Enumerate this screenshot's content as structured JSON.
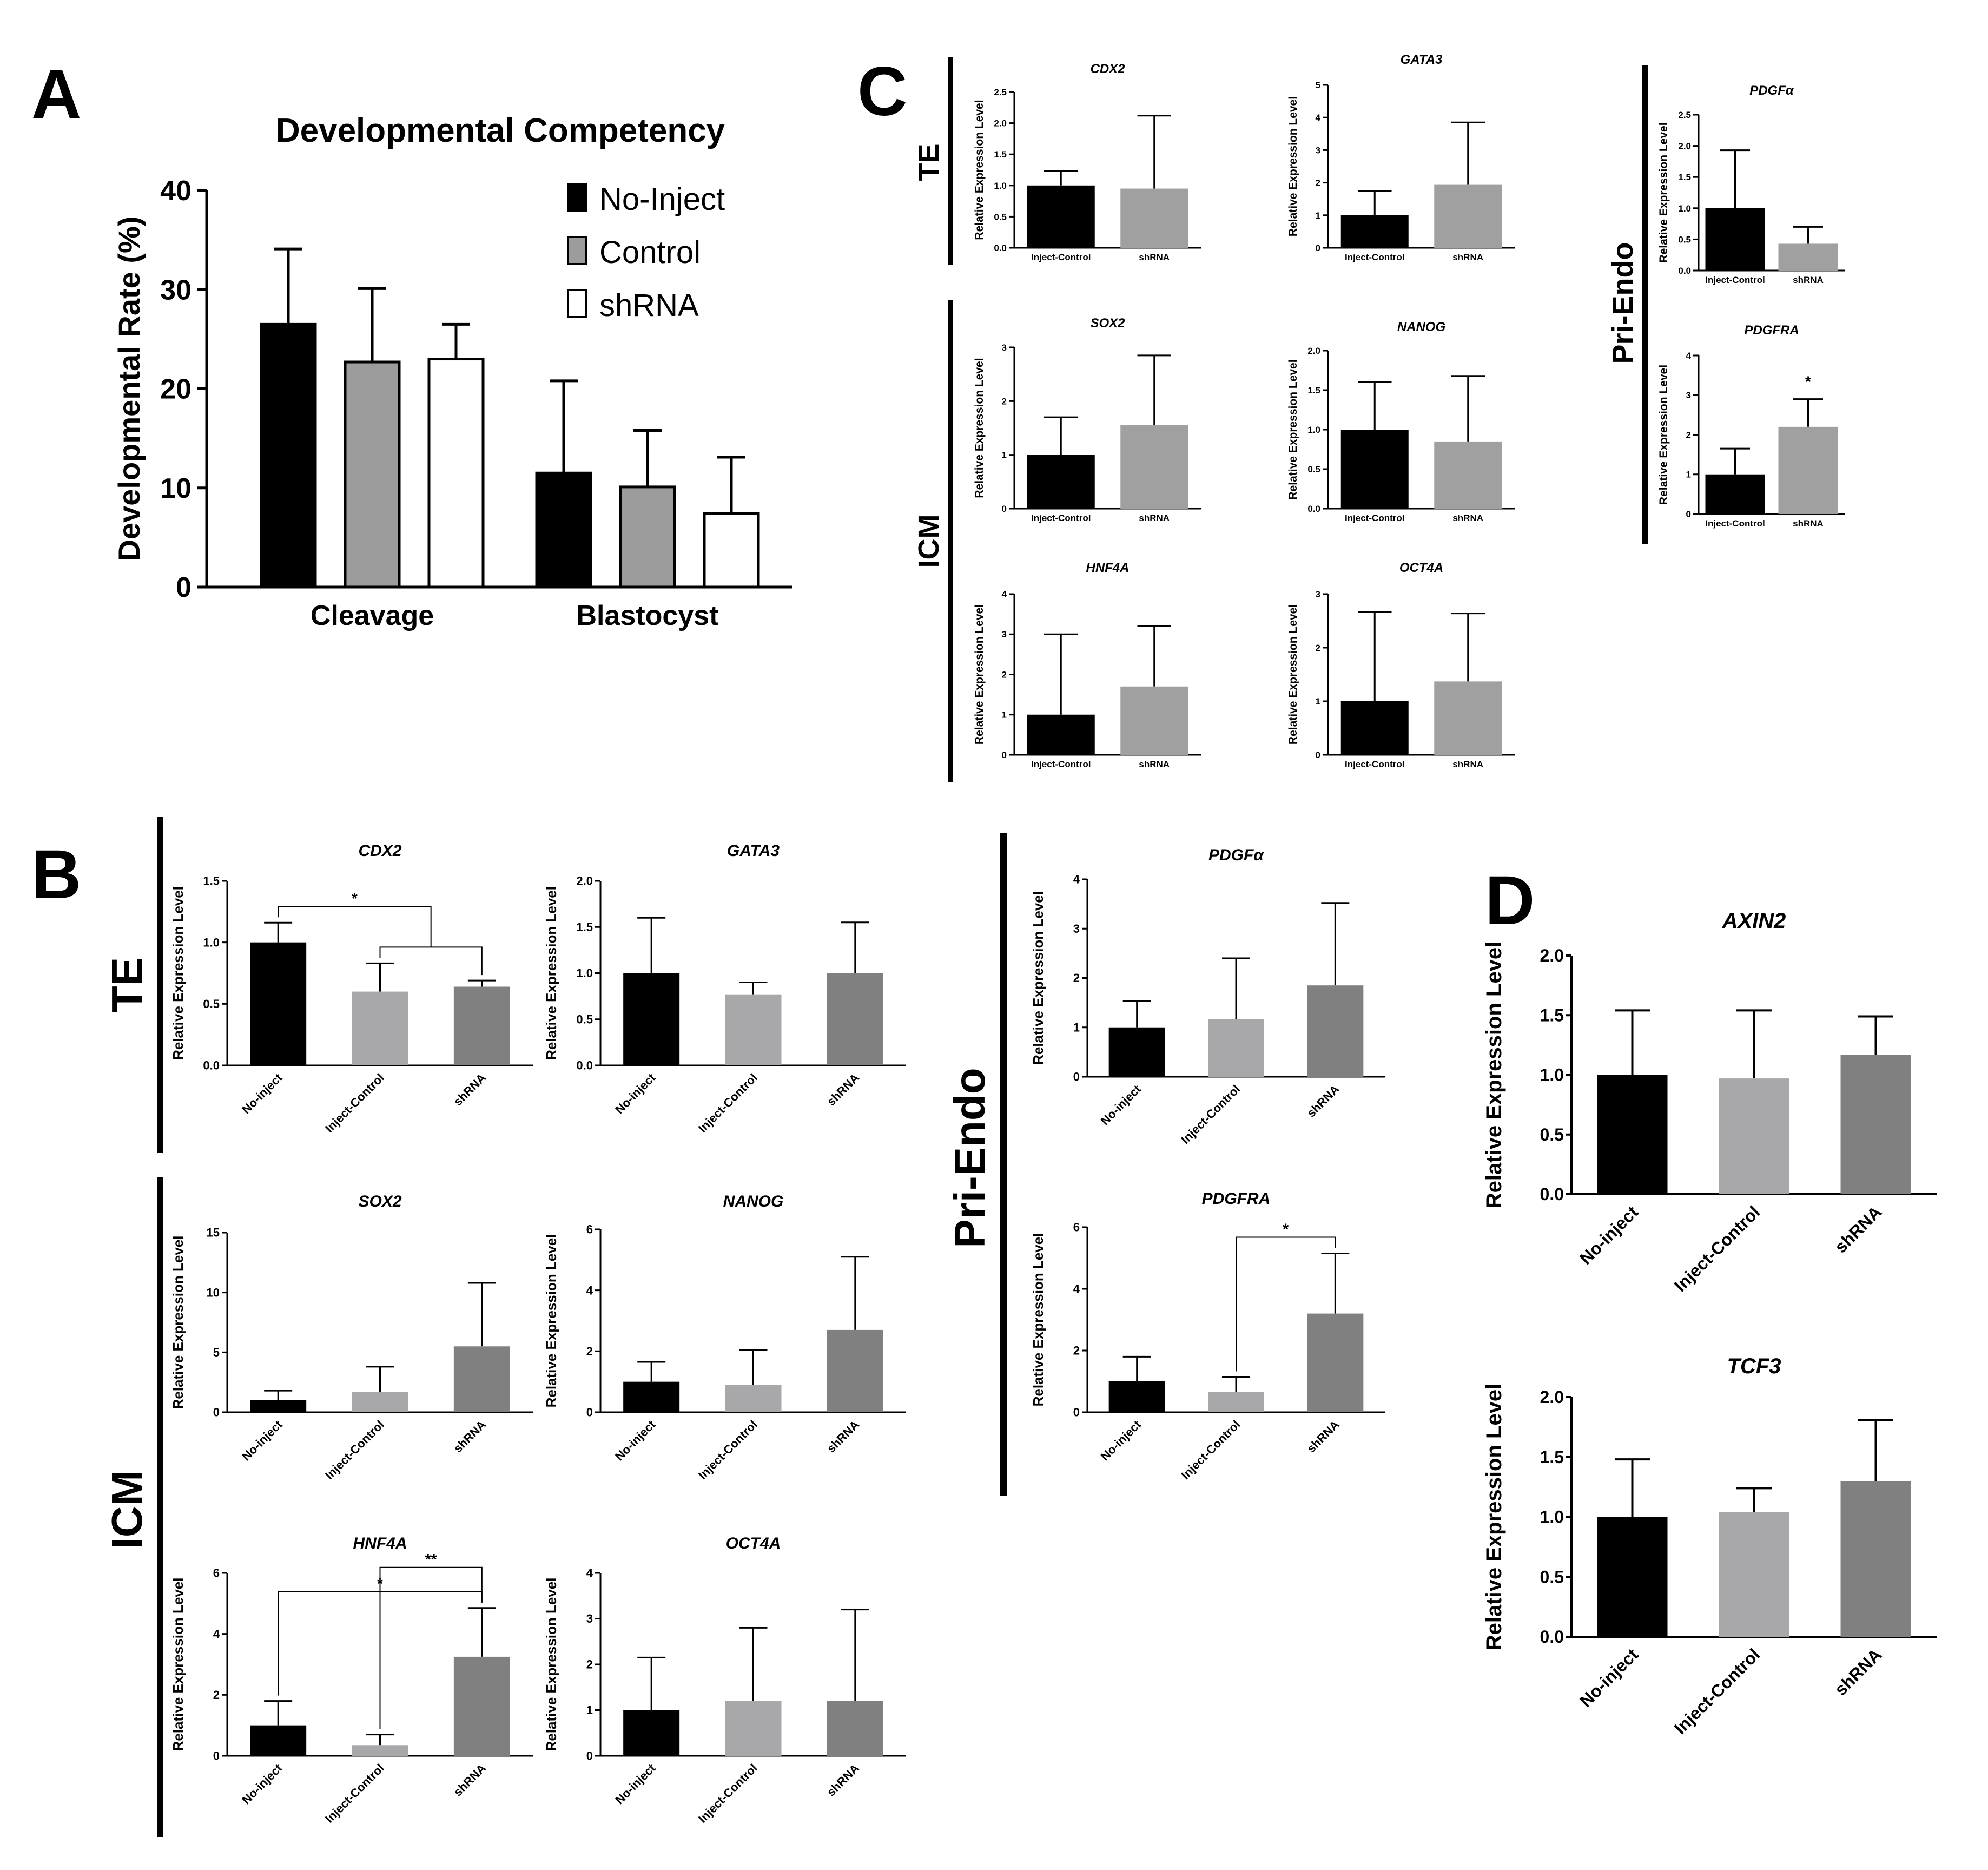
{
  "panel_letters": {
    "A": "A",
    "B": "B",
    "C": "C",
    "D": "D"
  },
  "group_labels": {
    "B_TE": "TE",
    "B_ICM": "ICM",
    "B_PE": "Pri-Endo",
    "C_TE": "TE",
    "C_ICM": "ICM",
    "C_PE": "Pri-Endo"
  },
  "colors": {
    "black": "#000000",
    "light_gray": "#a8a8aa",
    "mid_gray": "#808080",
    "c_gray": "#a0a0a0",
    "legend_gray": "#9c9c9c",
    "white": "#ffffff"
  },
  "chart_data": [
    {
      "id": "A",
      "type": "bar",
      "title": "Developmental Competency",
      "xlabel": "",
      "ylabel": "Developmental Rate (%)",
      "ylim": [
        0,
        40
      ],
      "yticks": [
        0,
        10,
        20,
        30,
        40
      ],
      "categories": [
        "Cleavage",
        "Blastocyst"
      ],
      "legend_position": "top-right",
      "series": [
        {
          "name": "No-Inject",
          "color": "#000000",
          "values": [
            26.5,
            11.5
          ],
          "errors": [
            7.6,
            9.3
          ]
        },
        {
          "name": "Control",
          "color": "#9c9c9c",
          "values": [
            22.7,
            10.1
          ],
          "errors": [
            7.4,
            5.7
          ]
        },
        {
          "name": "shRNA",
          "color": "#ffffff",
          "values": [
            23.0,
            7.4
          ],
          "errors": [
            3.5,
            5.7
          ]
        }
      ]
    },
    {
      "id": "B-CDX2",
      "type": "bar",
      "title": "CDX2",
      "ylabel": "Relative Expression Level",
      "ylim": [
        0,
        1.5
      ],
      "yticks": [
        "0.0",
        "0.5",
        "1.0",
        "1.5"
      ],
      "categories": [
        "No-inject",
        "Inject-Control",
        "shRNA"
      ],
      "colors": [
        "#000000",
        "#a8a8aa",
        "#808080"
      ],
      "values": [
        1.0,
        0.6,
        0.64
      ],
      "errors": [
        0.16,
        0.23,
        0.05
      ],
      "significance": [
        {
          "from": 0,
          "to": 1,
          "to2": 2,
          "label": "*"
        }
      ]
    },
    {
      "id": "B-GATA3",
      "type": "bar",
      "title": "GATA3",
      "ylabel": "Relative Expression Level",
      "ylim": [
        0,
        2.0
      ],
      "yticks": [
        "0.0",
        "0.5",
        "1.0",
        "1.5",
        "2.0"
      ],
      "categories": [
        "No-inject",
        "Inject-Control",
        "shRNA"
      ],
      "colors": [
        "#000000",
        "#a8a8aa",
        "#808080"
      ],
      "values": [
        1.0,
        0.77,
        1.0
      ],
      "errors": [
        0.6,
        0.13,
        0.55
      ]
    },
    {
      "id": "B-SOX2",
      "type": "bar",
      "title": "SOX2",
      "ylabel": "Relative Expression Level",
      "ylim": [
        0,
        15
      ],
      "yticks": [
        "0",
        "5",
        "10",
        "15"
      ],
      "categories": [
        "No-inject",
        "Inject-Control",
        "shRNA"
      ],
      "colors": [
        "#000000",
        "#a8a8aa",
        "#808080"
      ],
      "values": [
        1.0,
        1.7,
        5.5
      ],
      "errors": [
        0.8,
        2.1,
        5.3
      ]
    },
    {
      "id": "B-NANOG",
      "type": "bar",
      "title": "NANOG",
      "ylabel": "Relative Expression Level",
      "ylim": [
        0,
        6
      ],
      "yticks": [
        "0",
        "2",
        "4",
        "6"
      ],
      "categories": [
        "No-inject",
        "Inject-Control",
        "shRNA"
      ],
      "colors": [
        "#000000",
        "#a8a8aa",
        "#808080"
      ],
      "values": [
        1.0,
        0.9,
        2.7
      ],
      "errors": [
        0.65,
        1.15,
        2.4
      ]
    },
    {
      "id": "B-HNF4A",
      "type": "bar",
      "title": "HNF4A",
      "ylabel": "Relative Expression Level",
      "ylim": [
        0,
        6
      ],
      "yticks": [
        "0",
        "2",
        "4",
        "6"
      ],
      "categories": [
        "No-inject",
        "Inject-Control",
        "shRNA"
      ],
      "colors": [
        "#000000",
        "#a8a8aa",
        "#808080"
      ],
      "values": [
        1.0,
        0.35,
        3.25
      ],
      "errors": [
        0.8,
        0.35,
        1.6
      ],
      "significance": [
        {
          "from": 0,
          "to": 2,
          "label": "*"
        },
        {
          "from": 1,
          "to": 2,
          "label": "**"
        }
      ]
    },
    {
      "id": "B-OCT4A",
      "type": "bar",
      "title": "OCT4A",
      "ylabel": "Relative Expression Level",
      "ylim": [
        0,
        4
      ],
      "yticks": [
        "0",
        "1",
        "2",
        "3",
        "4"
      ],
      "categories": [
        "No-inject",
        "Inject-Control",
        "shRNA"
      ],
      "colors": [
        "#000000",
        "#a8a8aa",
        "#808080"
      ],
      "values": [
        1.0,
        1.2,
        1.2
      ],
      "errors": [
        1.15,
        1.6,
        2.0
      ]
    },
    {
      "id": "B-PDGFa",
      "type": "bar",
      "title": "PDGFα",
      "ylabel": "Relative Expression Level",
      "ylim": [
        0,
        4
      ],
      "yticks": [
        "0",
        "1",
        "2",
        "3",
        "4"
      ],
      "categories": [
        "No-inject",
        "Inject-Control",
        "shRNA"
      ],
      "colors": [
        "#000000",
        "#a8a8aa",
        "#808080"
      ],
      "values": [
        1.0,
        1.17,
        1.85
      ],
      "errors": [
        0.53,
        1.23,
        1.67
      ]
    },
    {
      "id": "B-PDGFRA",
      "type": "bar",
      "title": "PDGFRA",
      "ylabel": "Relative Expression Level",
      "ylim": [
        0,
        6
      ],
      "yticks": [
        "0",
        "2",
        "4",
        "6"
      ],
      "categories": [
        "No-inject",
        "Inject-Control",
        "shRNA"
      ],
      "colors": [
        "#000000",
        "#a8a8aa",
        "#808080"
      ],
      "values": [
        1.0,
        0.65,
        3.2
      ],
      "errors": [
        0.8,
        0.5,
        1.95
      ],
      "significance": [
        {
          "from": 1,
          "to": 2,
          "label": "*"
        }
      ]
    },
    {
      "id": "C-CDX2",
      "type": "bar",
      "title": "CDX2",
      "ylabel": "Relative Expression Level",
      "ylim": [
        0,
        2.5
      ],
      "yticks": [
        "0.0",
        "0.5",
        "1.0",
        "1.5",
        "2.0",
        "2.5"
      ],
      "categories": [
        "Inject-Control",
        "shRNA"
      ],
      "colors": [
        "#000000",
        "#a0a0a0"
      ],
      "values": [
        1.0,
        0.95
      ],
      "errors": [
        0.23,
        1.17
      ]
    },
    {
      "id": "C-GATA3",
      "type": "bar",
      "title": "GATA3",
      "ylabel": "Relative Expression Level",
      "ylim": [
        0,
        5
      ],
      "yticks": [
        "0",
        "1",
        "2",
        "3",
        "4",
        "5"
      ],
      "categories": [
        "Inject-Control",
        "shRNA"
      ],
      "colors": [
        "#000000",
        "#a0a0a0"
      ],
      "values": [
        1.0,
        1.95
      ],
      "errors": [
        0.75,
        1.9
      ]
    },
    {
      "id": "C-SOX2",
      "type": "bar",
      "title": "SOX2",
      "ylabel": "Relative Expression Level",
      "ylim": [
        0,
        3
      ],
      "yticks": [
        "0",
        "1",
        "2",
        "3"
      ],
      "categories": [
        "Inject-Control",
        "shRNA"
      ],
      "colors": [
        "#000000",
        "#a0a0a0"
      ],
      "values": [
        1.0,
        1.55
      ],
      "errors": [
        0.7,
        1.3
      ]
    },
    {
      "id": "C-NANOG",
      "type": "bar",
      "title": "NANOG",
      "ylabel": "Relative Expression Level",
      "ylim": [
        0,
        2.0
      ],
      "yticks": [
        "0.0",
        "0.5",
        "1.0",
        "1.5",
        "2.0"
      ],
      "categories": [
        "Inject-Control",
        "shRNA"
      ],
      "colors": [
        "#000000",
        "#a0a0a0"
      ],
      "values": [
        1.0,
        0.85
      ],
      "errors": [
        0.6,
        0.83
      ]
    },
    {
      "id": "C-HNF4A",
      "type": "bar",
      "title": "HNF4A",
      "ylabel": "Relative Expression Level",
      "ylim": [
        0,
        4
      ],
      "yticks": [
        "0",
        "1",
        "2",
        "3",
        "4"
      ],
      "categories": [
        "Inject-Control",
        "shRNA"
      ],
      "colors": [
        "#000000",
        "#a0a0a0"
      ],
      "values": [
        1.0,
        1.7
      ],
      "errors": [
        2.0,
        1.5
      ]
    },
    {
      "id": "C-OCT4A",
      "type": "bar",
      "title": "OCT4A",
      "ylabel": "Relative Expression Level",
      "ylim": [
        0,
        3
      ],
      "yticks": [
        "0",
        "1",
        "2",
        "3"
      ],
      "categories": [
        "Inject-Control",
        "shRNA"
      ],
      "colors": [
        "#000000",
        "#a0a0a0"
      ],
      "values": [
        1.0,
        1.37
      ],
      "errors": [
        1.67,
        1.27
      ]
    },
    {
      "id": "C-PDGFa",
      "type": "bar",
      "title": "PDGFα",
      "ylabel": "Relative Expression Level",
      "ylim": [
        0,
        2.5
      ],
      "yticks": [
        "0.0",
        "0.5",
        "1.0",
        "1.5",
        "2.0",
        "2.5"
      ],
      "categories": [
        "Inject-Control",
        "shRNA"
      ],
      "colors": [
        "#000000",
        "#a0a0a0"
      ],
      "values": [
        1.0,
        0.43
      ],
      "errors": [
        0.93,
        0.27
      ]
    },
    {
      "id": "C-PDGFRA",
      "type": "bar",
      "title": "PDGFRA",
      "ylabel": "Relative Expression Level",
      "ylim": [
        0,
        4
      ],
      "yticks": [
        "0",
        "1",
        "2",
        "3",
        "4"
      ],
      "categories": [
        "Inject-Control",
        "shRNA"
      ],
      "colors": [
        "#000000",
        "#a0a0a0"
      ],
      "values": [
        1.0,
        2.2
      ],
      "errors": [
        0.65,
        0.7
      ],
      "significance": [
        {
          "bar": 1,
          "label": "*"
        }
      ]
    },
    {
      "id": "D-AXIN2",
      "type": "bar",
      "title": "AXIN2",
      "ylabel": "Relative Expression Level",
      "ylim": [
        0,
        2.0
      ],
      "yticks": [
        "0.0",
        "0.5",
        "1.0",
        "1.5",
        "2.0"
      ],
      "categories": [
        "No-inject",
        "Inject-Control",
        "shRNA"
      ],
      "colors": [
        "#000000",
        "#a8a8aa",
        "#808080"
      ],
      "values": [
        1.0,
        0.97,
        1.17
      ],
      "errors": [
        0.54,
        0.57,
        0.32
      ]
    },
    {
      "id": "D-TCF3",
      "type": "bar",
      "title": "TCF3",
      "ylabel": "Relative Expression Level",
      "ylim": [
        0,
        2.0
      ],
      "yticks": [
        "0.0",
        "0.5",
        "1.0",
        "1.5",
        "2.0"
      ],
      "categories": [
        "No-inject",
        "Inject-Control",
        "shRNA"
      ],
      "colors": [
        "#000000",
        "#a8a8aa",
        "#808080"
      ],
      "values": [
        1.0,
        1.04,
        1.3
      ],
      "errors": [
        0.48,
        0.2,
        0.51
      ]
    }
  ]
}
